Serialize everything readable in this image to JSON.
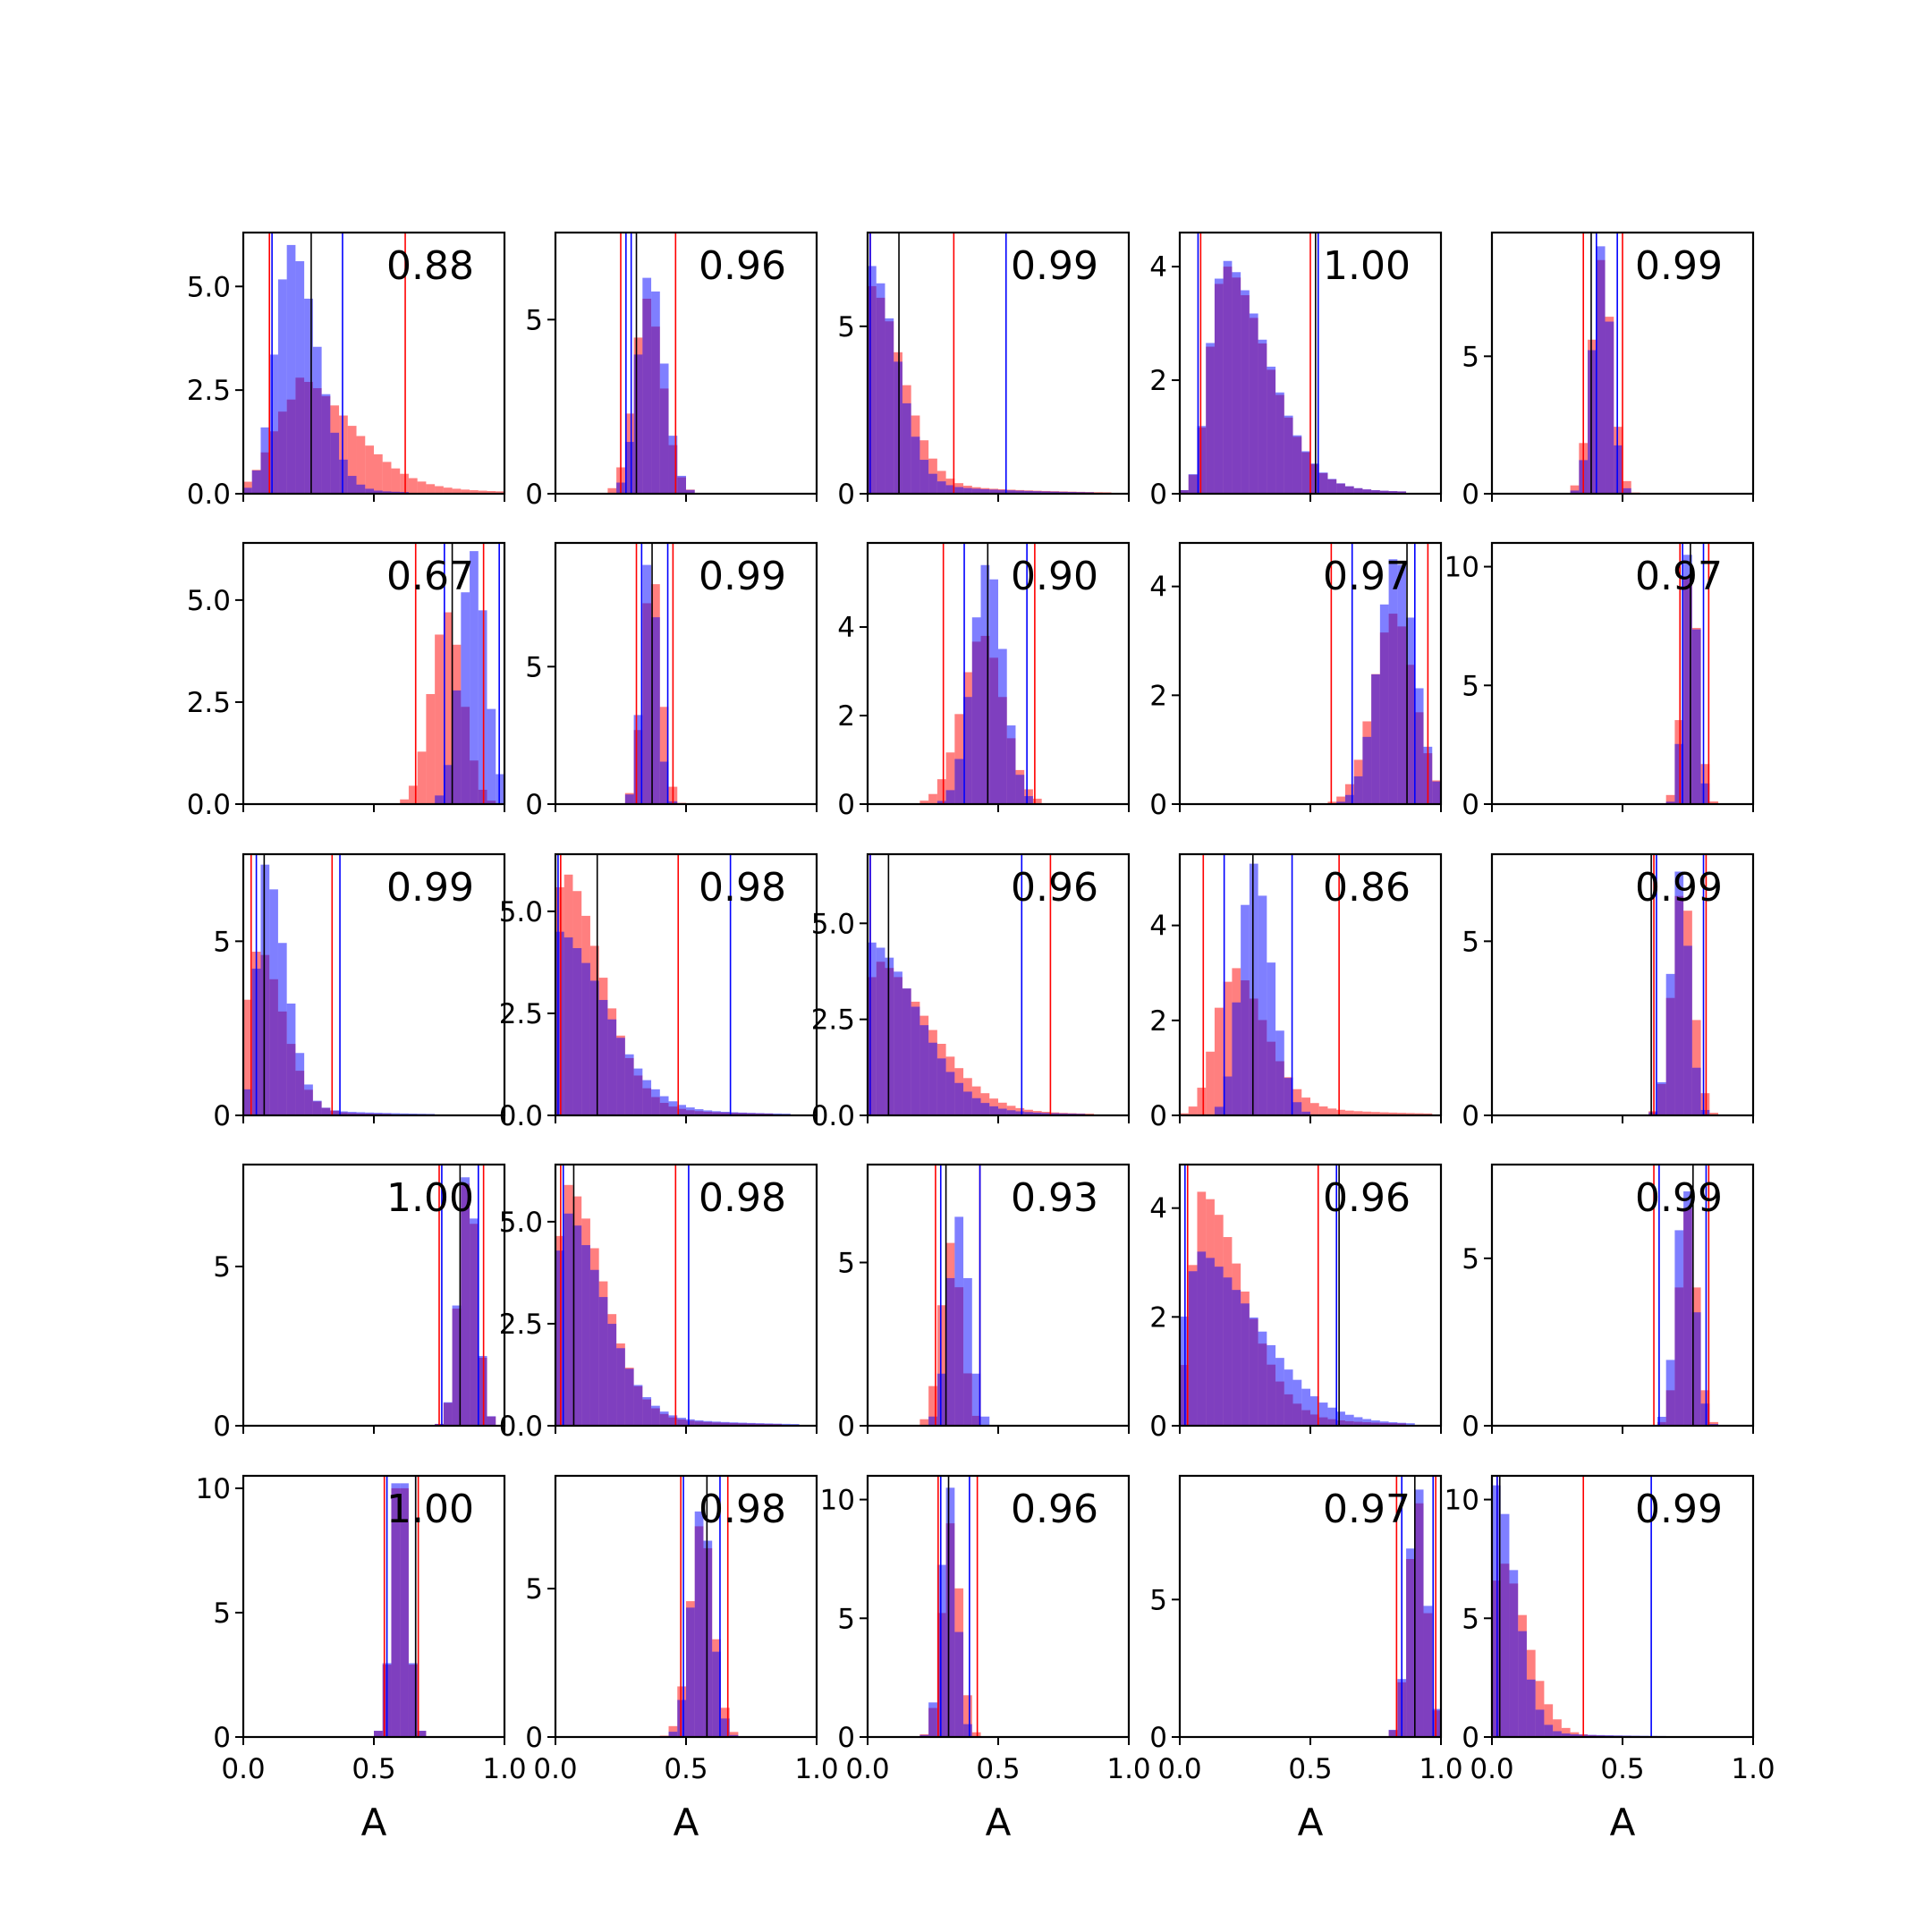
{
  "figure": {
    "rows": 5,
    "cols": 5,
    "xlabel": "A",
    "xticks": [
      0.0,
      0.5,
      1.0
    ],
    "xtick_labels": [
      "0.0",
      "0.5",
      "1.0"
    ],
    "xlim": [
      0,
      1
    ],
    "colors": {
      "red": "#ff0000",
      "blue": "#0000ff",
      "black": "#000000",
      "red_fill": "#ff0000",
      "blue_fill": "#0000ff"
    },
    "fill_opacity": 0.5
  },
  "chart_data": [
    {
      "type": "bar",
      "score": "0.88",
      "ymax": 6.3,
      "yticks": [
        0,
        2.5,
        5
      ],
      "ytick_labels": [
        "0.0",
        "2.5",
        "5.0"
      ],
      "red": {
        "peak": 0.2,
        "sigma": 0.09,
        "skew": 0.12,
        "height": 2.8,
        "tail": 0.9
      },
      "blue": {
        "peak": 0.18,
        "sigma": 0.06,
        "skew": 0.04,
        "height": 6.0,
        "tail": 0.1
      },
      "lines": {
        "red": [
          0.1,
          0.62
        ],
        "blue": [
          0.11,
          0.38
        ],
        "black": [
          0.26
        ]
      }
    },
    {
      "type": "bar",
      "score": "0.96",
      "ymax": 7.5,
      "yticks": [
        0,
        5
      ],
      "ytick_labels": [
        "0",
        "5"
      ],
      "red": {
        "peak": 0.35,
        "sigma": 0.05,
        "skew": 0.01,
        "height": 5.6,
        "tail": 0.0
      },
      "blue": {
        "peak": 0.36,
        "sigma": 0.045,
        "skew": 0.01,
        "height": 6.2,
        "tail": 0.0
      },
      "lines": {
        "red": [
          0.25,
          0.46
        ],
        "blue": [
          0.27,
          0.29
        ],
        "black": [
          0.31
        ]
      }
    },
    {
      "type": "bar",
      "score": "0.99",
      "ymax": 7.8,
      "yticks": [
        0,
        5
      ],
      "ytick_labels": [
        "0",
        "5"
      ],
      "red": {
        "peak": 0.01,
        "sigma": 0.02,
        "skew": 0.1,
        "height": 6.2,
        "tail": 0.4
      },
      "blue": {
        "peak": 0.01,
        "sigma": 0.02,
        "skew": 0.08,
        "height": 6.8,
        "tail": 0.3
      },
      "lines": {
        "red": [
          0.01,
          0.33
        ],
        "blue": [
          0.01,
          0.53
        ],
        "black": [
          0.12
        ]
      }
    },
    {
      "type": "bar",
      "score": "1.00",
      "ymax": 4.6,
      "yticks": [
        0,
        2,
        4
      ],
      "ytick_labels": [
        "0",
        "2",
        "4"
      ],
      "red": {
        "peak": 0.16,
        "sigma": 0.05,
        "skew": 0.12,
        "height": 4.0,
        "tail": 0.3
      },
      "blue": {
        "peak": 0.16,
        "sigma": 0.05,
        "skew": 0.12,
        "height": 4.1,
        "tail": 0.3
      },
      "lines": {
        "red": [
          0.08,
          0.5
        ],
        "blue": [
          0.07,
          0.53
        ],
        "black": [
          0.52
        ]
      }
    },
    {
      "type": "bar",
      "score": "0.99",
      "ymax": 9.5,
      "yticks": [
        0,
        5
      ],
      "ytick_labels": [
        "0",
        "5"
      ],
      "red": {
        "peak": 0.42,
        "sigma": 0.04,
        "skew": 0.0,
        "height": 8.5,
        "tail": 0.0
      },
      "blue": {
        "peak": 0.42,
        "sigma": 0.035,
        "skew": 0.0,
        "height": 9.0,
        "tail": 0.0
      },
      "lines": {
        "red": [
          0.35,
          0.5
        ],
        "blue": [
          0.4,
          0.48
        ],
        "black": [
          0.38
        ]
      }
    },
    {
      "type": "bar",
      "score": "0.67",
      "ymax": 6.4,
      "yticks": [
        0,
        2.5,
        5
      ],
      "ytick_labels": [
        "0.0",
        "2.5",
        "5.0"
      ],
      "red": {
        "peak": 0.78,
        "sigma": 0.06,
        "skew": 0.0,
        "height": 4.7,
        "tail": 0.0
      },
      "blue": {
        "peak": 0.88,
        "sigma": 0.05,
        "skew": 0.0,
        "height": 6.2,
        "tail": 0.0
      },
      "lines": {
        "red": [
          0.66,
          0.92
        ],
        "blue": [
          0.77,
          0.98
        ],
        "black": [
          0.8
        ]
      }
    },
    {
      "type": "bar",
      "score": "0.99",
      "ymax": 9.5,
      "yticks": [
        0,
        5
      ],
      "ytick_labels": [
        "0",
        "5"
      ],
      "red": {
        "peak": 0.37,
        "sigma": 0.035,
        "skew": 0.0,
        "height": 8.0,
        "tail": 0.0
      },
      "blue": {
        "peak": 0.36,
        "sigma": 0.03,
        "skew": 0.0,
        "height": 8.7,
        "tail": 0.0
      },
      "lines": {
        "red": [
          0.31,
          0.45
        ],
        "blue": [
          0.33,
          0.43
        ],
        "black": [
          0.37
        ]
      }
    },
    {
      "type": "bar",
      "score": "0.90",
      "ymax": 5.9,
      "yticks": [
        0,
        2,
        4
      ],
      "ytick_labels": [
        "0",
        "2",
        "4"
      ],
      "red": {
        "peak": 0.44,
        "sigma": 0.08,
        "skew": 0.0,
        "height": 3.8,
        "tail": 0.0
      },
      "blue": {
        "peak": 0.46,
        "sigma": 0.06,
        "skew": 0.0,
        "height": 5.4,
        "tail": 0.0
      },
      "lines": {
        "red": [
          0.29,
          0.64
        ],
        "blue": [
          0.37,
          0.61
        ],
        "black": [
          0.46
        ]
      }
    },
    {
      "type": "bar",
      "score": "0.97",
      "ymax": 4.8,
      "yticks": [
        0,
        2,
        4
      ],
      "ytick_labels": [
        "0",
        "2",
        "4"
      ],
      "red": {
        "peak": 0.82,
        "sigma": 0.08,
        "skew": 0.0,
        "height": 3.5,
        "tail": 0.0
      },
      "blue": {
        "peak": 0.83,
        "sigma": 0.07,
        "skew": 0.0,
        "height": 4.5,
        "tail": 0.0
      },
      "lines": {
        "red": [
          0.58,
          0.95
        ],
        "blue": [
          0.66,
          0.9
        ],
        "black": [
          0.87
        ]
      }
    },
    {
      "type": "bar",
      "score": "0.97",
      "ymax": 11.0,
      "yticks": [
        0,
        5,
        10
      ],
      "ytick_labels": [
        "0",
        "5",
        "10"
      ],
      "red": {
        "peak": 0.76,
        "sigma": 0.03,
        "skew": 0.0,
        "height": 9.5,
        "tail": 0.0
      },
      "blue": {
        "peak": 0.76,
        "sigma": 0.025,
        "skew": 0.0,
        "height": 10.5,
        "tail": 0.0
      },
      "lines": {
        "red": [
          0.72,
          0.83
        ],
        "blue": [
          0.73,
          0.81
        ],
        "black": [
          0.76
        ]
      }
    },
    {
      "type": "bar",
      "score": "0.99",
      "ymax": 7.5,
      "yticks": [
        0,
        5
      ],
      "ytick_labels": [
        "0",
        "5"
      ],
      "red": {
        "peak": 0.05,
        "sigma": 0.04,
        "skew": 0.06,
        "height": 4.7,
        "tail": 0.15
      },
      "blue": {
        "peak": 0.08,
        "sigma": 0.03,
        "skew": 0.05,
        "height": 7.2,
        "tail": 0.15
      },
      "lines": {
        "red": [
          0.03,
          0.34
        ],
        "blue": [
          0.05,
          0.37
        ],
        "black": [
          0.08
        ]
      }
    },
    {
      "type": "bar",
      "score": "0.98",
      "ymax": 6.4,
      "yticks": [
        0,
        2.5,
        5
      ],
      "ytick_labels": [
        "0.0",
        "2.5",
        "5.0"
      ],
      "red": {
        "peak": 0.02,
        "sigma": 0.03,
        "skew": 0.12,
        "height": 5.9,
        "tail": 0.3
      },
      "blue": {
        "peak": 0.01,
        "sigma": 0.03,
        "skew": 0.15,
        "height": 4.5,
        "tail": 0.5
      },
      "lines": {
        "red": [
          0.02,
          0.47
        ],
        "blue": [
          0.01,
          0.67
        ],
        "black": [
          0.16
        ]
      }
    },
    {
      "type": "bar",
      "score": "0.96",
      "ymax": 6.8,
      "yticks": [
        0,
        2.5,
        5
      ],
      "ytick_labels": [
        "0.0",
        "2.5",
        "5.0"
      ],
      "red": {
        "peak": 0.02,
        "sigma": 0.03,
        "skew": 0.18,
        "height": 4.0,
        "tail": 0.5
      },
      "blue": {
        "peak": 0.01,
        "sigma": 0.03,
        "skew": 0.15,
        "height": 4.5,
        "tail": 0.4
      },
      "lines": {
        "red": [
          0.01,
          0.7
        ],
        "blue": [
          0.01,
          0.59
        ],
        "black": [
          0.08
        ]
      }
    },
    {
      "type": "bar",
      "score": "0.86",
      "ymax": 5.5,
      "yticks": [
        0,
        2,
        4
      ],
      "ytick_labels": [
        "0",
        "2",
        "4"
      ],
      "red": {
        "peak": 0.19,
        "sigma": 0.06,
        "skew": 0.07,
        "height": 3.1,
        "tail": 0.5
      },
      "blue": {
        "peak": 0.28,
        "sigma": 0.05,
        "skew": 0.02,
        "height": 5.3,
        "tail": 0.0
      },
      "lines": {
        "red": [
          0.09,
          0.61
        ],
        "blue": [
          0.17,
          0.43
        ],
        "black": [
          0.28
        ]
      }
    },
    {
      "type": "bar",
      "score": "0.99",
      "ymax": 7.5,
      "yticks": [
        0,
        5
      ],
      "ytick_labels": [
        "0",
        "5"
      ],
      "red": {
        "peak": 0.73,
        "sigma": 0.04,
        "skew": 0.0,
        "height": 6.3,
        "tail": 0.0
      },
      "blue": {
        "peak": 0.72,
        "sigma": 0.035,
        "skew": 0.0,
        "height": 7.0,
        "tail": 0.0
      },
      "lines": {
        "red": [
          0.62,
          0.82
        ],
        "blue": [
          0.63,
          0.81
        ],
        "black": [
          0.61
        ]
      }
    },
    {
      "type": "bar",
      "score": "1.00",
      "ymax": 8.2,
      "yticks": [
        0,
        5
      ],
      "ytick_labels": [
        "0",
        "5"
      ],
      "red": {
        "peak": 0.86,
        "sigma": 0.035,
        "skew": 0.0,
        "height": 7.6,
        "tail": 0.0
      },
      "blue": {
        "peak": 0.86,
        "sigma": 0.035,
        "skew": 0.0,
        "height": 7.8,
        "tail": 0.0
      },
      "lines": {
        "red": [
          0.75,
          0.92
        ],
        "blue": [
          0.76,
          0.9
        ],
        "black": [
          0.83
        ]
      }
    },
    {
      "type": "bar",
      "score": "0.98",
      "ymax": 6.4,
      "yticks": [
        0,
        2.5,
        5
      ],
      "ytick_labels": [
        "0.0",
        "2.5",
        "5.0"
      ],
      "red": {
        "peak": 0.04,
        "sigma": 0.04,
        "skew": 0.1,
        "height": 5.9,
        "tail": 0.3
      },
      "blue": {
        "peak": 0.03,
        "sigma": 0.03,
        "skew": 0.12,
        "height": 5.2,
        "tail": 0.45
      },
      "lines": {
        "red": [
          0.02,
          0.46
        ],
        "blue": [
          0.03,
          0.51
        ],
        "black": [
          0.07
        ]
      }
    },
    {
      "type": "bar",
      "score": "0.93",
      "ymax": 8.0,
      "yticks": [
        0,
        5
      ],
      "ytick_labels": [
        "0",
        "5"
      ],
      "red": {
        "peak": 0.32,
        "sigma": 0.04,
        "skew": 0.0,
        "height": 5.6,
        "tail": 0.0
      },
      "blue": {
        "peak": 0.35,
        "sigma": 0.04,
        "skew": 0.0,
        "height": 6.4,
        "tail": 0.0
      },
      "lines": {
        "red": [
          0.26,
          0.43
        ],
        "blue": [
          0.28,
          0.43
        ],
        "black": [
          0.3
        ]
      }
    },
    {
      "type": "bar",
      "score": "0.96",
      "ymax": 4.8,
      "yticks": [
        0,
        2,
        4
      ],
      "ytick_labels": [
        "0",
        "2",
        "4"
      ],
      "red": {
        "peak": 0.08,
        "sigma": 0.04,
        "skew": 0.12,
        "height": 4.3,
        "tail": 0.4
      },
      "blue": {
        "peak": 0.05,
        "sigma": 0.04,
        "skew": 0.2,
        "height": 3.2,
        "tail": 0.6
      },
      "lines": {
        "red": [
          0.03,
          0.53
        ],
        "blue": [
          0.02,
          0.6
        ],
        "black": [
          0.61
        ]
      }
    },
    {
      "type": "bar",
      "score": "0.99",
      "ymax": 7.8,
      "yticks": [
        0,
        5
      ],
      "ytick_labels": [
        "0",
        "5"
      ],
      "red": {
        "peak": 0.75,
        "sigma": 0.035,
        "skew": 0.0,
        "height": 6.5,
        "tail": 0.0
      },
      "blue": {
        "peak": 0.74,
        "sigma": 0.035,
        "skew": 0.0,
        "height": 7.0,
        "tail": 0.0
      },
      "lines": {
        "red": [
          0.62,
          0.83
        ],
        "blue": [
          0.64,
          0.82
        ],
        "black": [
          0.77
        ]
      }
    },
    {
      "type": "bar",
      "score": "1.00",
      "ymax": 10.5,
      "yticks": [
        0,
        5,
        10
      ],
      "ytick_labels": [
        "0",
        "5",
        "10"
      ],
      "red": {
        "peak": 0.6,
        "sigma": 0.03,
        "skew": 0.0,
        "height": 10.0,
        "tail": 0.0
      },
      "blue": {
        "peak": 0.6,
        "sigma": 0.03,
        "skew": 0.0,
        "height": 10.2,
        "tail": 0.0
      },
      "lines": {
        "red": [
          0.54,
          0.67
        ],
        "blue": [
          0.55,
          0.66
        ],
        "black": [
          0.66
        ]
      }
    },
    {
      "type": "bar",
      "score": "0.98",
      "ymax": 8.8,
      "yticks": [
        0,
        5
      ],
      "ytick_labels": [
        "0",
        "5"
      ],
      "red": {
        "peak": 0.56,
        "sigma": 0.045,
        "skew": 0.0,
        "height": 7.1,
        "tail": 0.0
      },
      "blue": {
        "peak": 0.56,
        "sigma": 0.04,
        "skew": 0.0,
        "height": 7.6,
        "tail": 0.0
      },
      "lines": {
        "red": [
          0.48,
          0.66
        ],
        "blue": [
          0.49,
          0.63
        ],
        "black": [
          0.58
        ]
      }
    },
    {
      "type": "bar",
      "score": "0.96",
      "ymax": 11.0,
      "yticks": [
        0,
        5,
        10
      ],
      "ytick_labels": [
        "0",
        "5",
        "10"
      ],
      "red": {
        "peak": 0.32,
        "sigma": 0.035,
        "skew": 0.0,
        "height": 9.0,
        "tail": 0.0
      },
      "blue": {
        "peak": 0.31,
        "sigma": 0.03,
        "skew": 0.0,
        "height": 10.5,
        "tail": 0.0
      },
      "lines": {
        "red": [
          0.27,
          0.42
        ],
        "blue": [
          0.28,
          0.39
        ],
        "black": [
          0.31
        ]
      }
    },
    {
      "type": "bar",
      "score": "0.97",
      "ymax": 9.5,
      "yticks": [
        0,
        5
      ],
      "ytick_labels": [
        "0",
        "5"
      ],
      "red": {
        "peak": 0.91,
        "sigma": 0.035,
        "skew": 0.0,
        "height": 8.5,
        "tail": 0.0
      },
      "blue": {
        "peak": 0.91,
        "sigma": 0.035,
        "skew": 0.0,
        "height": 9.0,
        "tail": 0.0
      },
      "lines": {
        "red": [
          0.83,
          0.98
        ],
        "blue": [
          0.85,
          0.97
        ],
        "black": [
          0.9
        ]
      }
    },
    {
      "type": "bar",
      "score": "0.99",
      "ymax": 11.0,
      "yticks": [
        0,
        5,
        10
      ],
      "ytick_labels": [
        "0",
        "5",
        "10"
      ],
      "red": {
        "peak": 0.03,
        "sigma": 0.03,
        "skew": 0.07,
        "height": 7.3,
        "tail": 0.1
      },
      "blue": {
        "peak": 0.01,
        "sigma": 0.02,
        "skew": 0.06,
        "height": 10.6,
        "tail": 0.1
      },
      "lines": {
        "red": [
          0.02,
          0.35
        ],
        "blue": [
          0.02,
          0.61
        ],
        "black": [
          0.03
        ]
      }
    }
  ]
}
